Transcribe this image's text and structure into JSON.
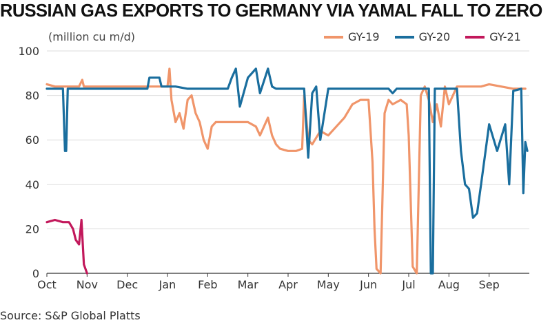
{
  "title": "RUSSIAN GAS EXPORTS TO GERMANY VIA YAMAL FALL TO ZERO",
  "unit_label": "(million cu m/d)",
  "source": "Source: S&P Global Platts",
  "chart_data": {
    "type": "line",
    "title": "RUSSIAN GAS EXPORTS TO GERMANY VIA YAMAL FALL TO ZERO",
    "ylabel": "(million cu m/d)",
    "xlabel": "",
    "ylim": [
      0,
      100
    ],
    "yticks": [
      0,
      20,
      40,
      60,
      80,
      100
    ],
    "xlim": [
      0,
      12
    ],
    "x_unit": "months from 1 Oct",
    "xticks": [
      "Oct",
      "Nov",
      "Dec",
      "Jan",
      "Feb",
      "Mar",
      "Apr",
      "May",
      "Jun",
      "Jul",
      "Aug",
      "Sep"
    ],
    "grid": true,
    "legend_position": "top-right",
    "series": [
      {
        "name": "GY-19",
        "color": "#F0956A",
        "x": [
          0,
          0.2,
          0.5,
          0.8,
          0.88,
          0.92,
          1.0,
          1.5,
          2.0,
          2.5,
          3.0,
          3.05,
          3.1,
          3.2,
          3.3,
          3.4,
          3.5,
          3.6,
          3.7,
          3.8,
          3.9,
          4.0,
          4.1,
          4.2,
          4.3,
          4.4,
          4.5,
          4.7,
          5.0,
          5.2,
          5.3,
          5.4,
          5.5,
          5.6,
          5.7,
          5.8,
          6.0,
          6.2,
          6.35,
          6.4,
          6.5,
          6.6,
          6.8,
          7.0,
          7.2,
          7.4,
          7.6,
          7.8,
          8.0,
          8.1,
          8.15,
          8.2,
          8.3,
          8.4,
          8.5,
          8.6,
          8.8,
          8.95,
          9.0,
          9.1,
          9.2,
          9.3,
          9.4,
          9.5,
          9.6,
          9.7,
          9.8,
          9.9,
          10.0,
          10.2,
          10.4,
          10.6,
          10.8,
          11.0,
          11.3,
          11.6,
          11.9
        ],
        "values": [
          85,
          84,
          84,
          84,
          87,
          84,
          84,
          84,
          84,
          84,
          84,
          92,
          78,
          68,
          72,
          65,
          78,
          80,
          72,
          68,
          60,
          56,
          66,
          68,
          68,
          68,
          68,
          68,
          68,
          66,
          62,
          66,
          70,
          62,
          58,
          56,
          55,
          55,
          56,
          80,
          60,
          58,
          64,
          62,
          66,
          70,
          76,
          78,
          78,
          50,
          20,
          2,
          0,
          72,
          78,
          76,
          78,
          76,
          62,
          3,
          0,
          80,
          84,
          78,
          68,
          76,
          66,
          84,
          76,
          84,
          84,
          84,
          84,
          85,
          84,
          83,
          83
        ]
      },
      {
        "name": "GY-20",
        "color": "#1A6E9E",
        "x": [
          0,
          0.2,
          0.4,
          0.45,
          0.48,
          0.52,
          0.55,
          0.6,
          1.0,
          2.0,
          2.5,
          2.55,
          2.8,
          2.85,
          3.2,
          3.5,
          4.0,
          4.5,
          4.6,
          4.7,
          4.8,
          5.0,
          5.2,
          5.3,
          5.5,
          5.6,
          5.7,
          5.8,
          6.0,
          6.4,
          6.5,
          6.6,
          6.7,
          6.8,
          7.0,
          7.5,
          8.0,
          8.5,
          8.6,
          8.7,
          9.0,
          9.5,
          9.55,
          9.6,
          9.65,
          9.7,
          9.75,
          9.8,
          10.0,
          10.2,
          10.3,
          10.4,
          10.5,
          10.6,
          10.7,
          10.8,
          11.0,
          11.2,
          11.4,
          11.5,
          11.6,
          11.8,
          11.85,
          11.9,
          11.95
        ],
        "values": [
          83,
          83,
          83,
          55,
          55,
          83,
          83,
          83,
          83,
          83,
          83,
          88,
          88,
          84,
          84,
          83,
          83,
          83,
          88,
          92,
          75,
          88,
          92,
          81,
          92,
          84,
          83,
          83,
          83,
          83,
          52,
          81,
          84,
          60,
          83,
          83,
          83,
          83,
          81,
          83,
          83,
          83,
          0,
          0,
          83,
          83,
          83,
          83,
          83,
          83,
          55,
          40,
          38,
          25,
          27,
          40,
          67,
          55,
          67,
          40,
          82,
          83,
          36,
          59,
          55
        ]
      },
      {
        "name": "GY-21",
        "color": "#C2185B",
        "x": [
          0,
          0.2,
          0.4,
          0.55,
          0.65,
          0.72,
          0.8,
          0.86,
          0.92,
          1.0
        ],
        "values": [
          23,
          24,
          23,
          23,
          20,
          15,
          13,
          24,
          4,
          0
        ]
      }
    ]
  }
}
